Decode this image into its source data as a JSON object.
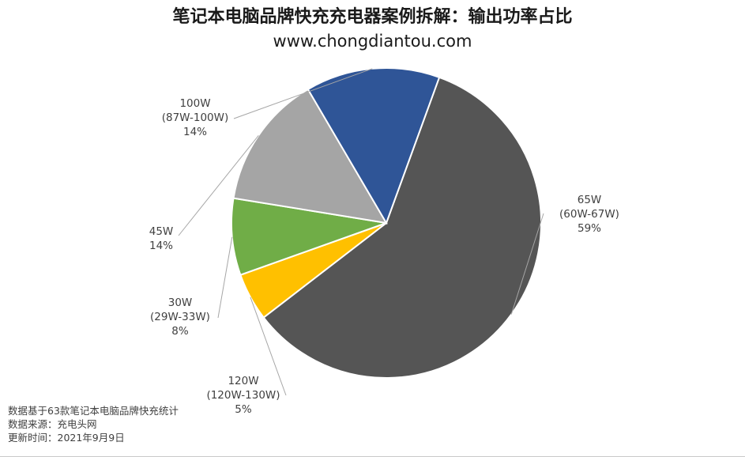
{
  "title": "笔记本电脑品牌快充充电器案例拆解：输出功率占比",
  "subtitle": "www.chongdiantou.com",
  "chart_data": {
    "type": "pie",
    "title": "笔记本电脑品牌快充充电器案例拆解：输出功率占比",
    "subtitle": "www.chongdiantou.com",
    "slices": [
      {
        "name": "65W",
        "range": "(60W-67W)",
        "percent_label": "59%",
        "value": 59,
        "color": "#555555"
      },
      {
        "name": "120W",
        "range": "(120W-130W)",
        "percent_label": "5%",
        "value": 5,
        "color": "#ffc000"
      },
      {
        "name": "30W",
        "range": "(29W-33W)",
        "percent_label": "8%",
        "value": 8,
        "color": "#70ad47"
      },
      {
        "name": "45W",
        "range": "",
        "percent_label": "14%",
        "value": 14,
        "color": "#a5a5a5"
      },
      {
        "name": "100W",
        "range": "(87W-100W)",
        "percent_label": "14%",
        "value": 14,
        "color": "#2f5597"
      }
    ],
    "start_angle_deg": 20,
    "direction": "clockwise"
  },
  "footnotes": [
    "数据基于63款笔记本电脑品牌快充统计",
    "数据来源：充电头网",
    "更新时间：2021年9月9日"
  ]
}
